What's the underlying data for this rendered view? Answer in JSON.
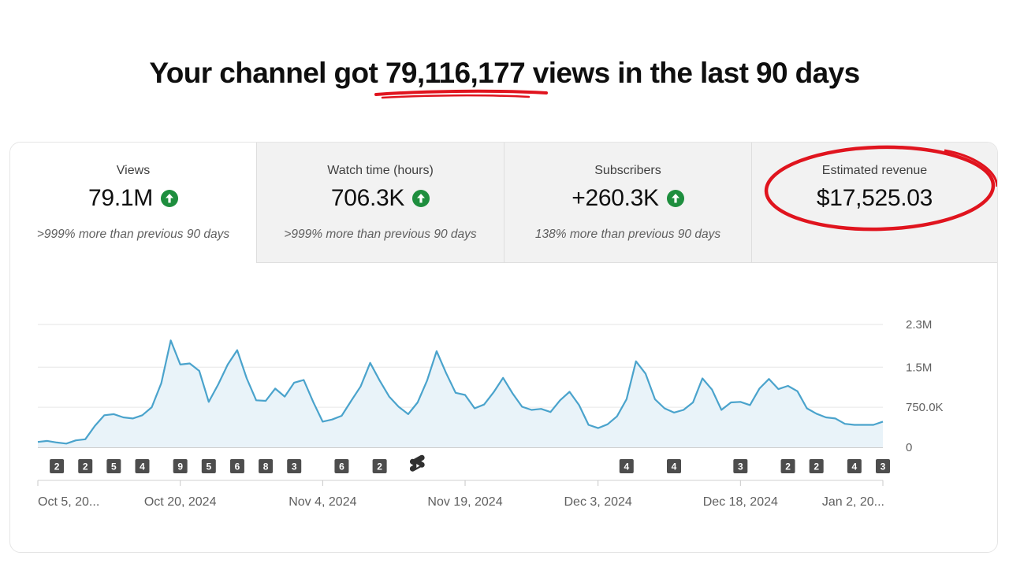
{
  "headline": {
    "prefix": "Your channel got ",
    "number": "79,116,177",
    "suffix": " views in the last 90 days"
  },
  "tabs": [
    {
      "label": "Views",
      "value": "79.1M",
      "trend": "up",
      "compare": ">999% more than previous 90 days"
    },
    {
      "label": "Watch time (hours)",
      "value": "706.3K",
      "trend": "up",
      "compare": ">999% more than previous 90 days"
    },
    {
      "label": "Subscribers",
      "value": "+260.3K",
      "trend": "up",
      "compare": "138% more than previous 90 days"
    },
    {
      "label": "Estimated revenue",
      "value": "$17,525.03",
      "trend": "",
      "compare": ""
    }
  ],
  "colors": {
    "accent_line": "#4aa3cc",
    "trend_up": "#1e8e3e",
    "annotation_red": "#e0141e",
    "badge": "#4d4d4d"
  },
  "chart_data": {
    "type": "area",
    "y_ticks": [
      {
        "value": 0,
        "label": "0"
      },
      {
        "value": 750000,
        "label": "750.0K"
      },
      {
        "value": 1500000,
        "label": "1.5M"
      },
      {
        "value": 2300000,
        "label": "2.3M"
      }
    ],
    "ylim": [
      0,
      2300000
    ],
    "x_tick_labels": [
      {
        "day": 0,
        "label": "Oct 5, 20..."
      },
      {
        "day": 15,
        "label": "Oct 20, 2024"
      },
      {
        "day": 30,
        "label": "Nov 4, 2024"
      },
      {
        "day": 45,
        "label": "Nov 19, 2024"
      },
      {
        "day": 59,
        "label": "Dec 3, 2024"
      },
      {
        "day": 74,
        "label": "Dec 18, 2024"
      },
      {
        "day": 89,
        "label": "Jan 2, 20..."
      }
    ],
    "values": [
      100000,
      120000,
      90000,
      70000,
      130000,
      150000,
      400000,
      600000,
      620000,
      560000,
      540000,
      600000,
      750000,
      1200000,
      2000000,
      1550000,
      1570000,
      1430000,
      850000,
      1180000,
      1550000,
      1820000,
      1290000,
      880000,
      870000,
      1100000,
      950000,
      1210000,
      1260000,
      850000,
      480000,
      520000,
      590000,
      870000,
      1140000,
      1580000,
      1250000,
      950000,
      760000,
      620000,
      840000,
      1250000,
      1800000,
      1390000,
      1020000,
      980000,
      730000,
      800000,
      1030000,
      1300000,
      1010000,
      760000,
      700000,
      720000,
      660000,
      880000,
      1040000,
      790000,
      420000,
      360000,
      430000,
      580000,
      900000,
      1610000,
      1380000,
      900000,
      730000,
      650000,
      700000,
      840000,
      1290000,
      1080000,
      700000,
      840000,
      850000,
      790000,
      1100000,
      1280000,
      1090000,
      1150000,
      1050000,
      730000,
      630000,
      560000,
      540000,
      440000,
      420000,
      420000,
      420000,
      480000
    ],
    "annotations": [
      {
        "day": 2,
        "label": "2"
      },
      {
        "day": 5,
        "label": "2"
      },
      {
        "day": 8,
        "label": "5"
      },
      {
        "day": 11,
        "label": "4"
      },
      {
        "day": 15,
        "label": "9"
      },
      {
        "day": 18,
        "label": "5"
      },
      {
        "day": 21,
        "label": "6"
      },
      {
        "day": 24,
        "label": "8"
      },
      {
        "day": 27,
        "label": "3"
      },
      {
        "day": 32,
        "label": "6"
      },
      {
        "day": 36,
        "label": "2"
      },
      {
        "day": 40,
        "label": "shorts-icon"
      },
      {
        "day": 62,
        "label": "4"
      },
      {
        "day": 67,
        "label": "4"
      },
      {
        "day": 74,
        "label": "3"
      },
      {
        "day": 79,
        "label": "2"
      },
      {
        "day": 82,
        "label": "2"
      },
      {
        "day": 86,
        "label": "4"
      },
      {
        "day": 89,
        "label": "3"
      }
    ]
  }
}
